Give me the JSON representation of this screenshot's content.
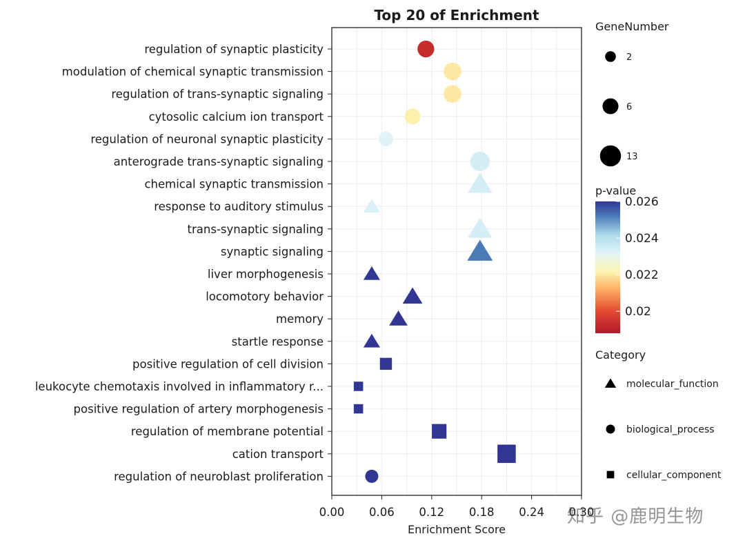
{
  "chart_data": {
    "type": "scatter",
    "title": "Top 20 of  Enrichment",
    "xlabel": "Enrichment Score",
    "ylabel": "",
    "xlim": [
      0,
      0.3
    ],
    "x_ticks": [
      "0.00",
      "0.06",
      "0.12",
      "0.18",
      "0.24",
      "0.30"
    ],
    "grid": true,
    "legend_placement": "right",
    "terms": [
      {
        "name": "regulation of synaptic plasticity",
        "x": 0.113,
        "genes": 6,
        "pvalue": 0.0193,
        "category": "biological_process"
      },
      {
        "name": "modulation of chemical synaptic transmission",
        "x": 0.145,
        "genes": 7,
        "pvalue": 0.022,
        "category": "biological_process"
      },
      {
        "name": "regulation of trans-synaptic signaling",
        "x": 0.145,
        "genes": 7,
        "pvalue": 0.022,
        "category": "biological_process"
      },
      {
        "name": "cytosolic calcium ion transport",
        "x": 0.097,
        "genes": 5,
        "pvalue": 0.0221,
        "category": "biological_process"
      },
      {
        "name": "regulation of neuronal synaptic plasticity",
        "x": 0.065,
        "genes": 4,
        "pvalue": 0.0232,
        "category": "biological_process"
      },
      {
        "name": "anterograde trans-synaptic signaling",
        "x": 0.178,
        "genes": 9,
        "pvalue": 0.0234,
        "category": "biological_process"
      },
      {
        "name": "chemical synaptic transmission",
        "x": 0.178,
        "genes": 9,
        "pvalue": 0.0234,
        "category": "molecular_function"
      },
      {
        "name": "response to auditory stimulus",
        "x": 0.048,
        "genes": 3,
        "pvalue": 0.0233,
        "category": "molecular_function"
      },
      {
        "name": "trans-synaptic signaling",
        "x": 0.178,
        "genes": 9,
        "pvalue": 0.0234,
        "category": "molecular_function"
      },
      {
        "name": "synaptic signaling",
        "x": 0.178,
        "genes": 10,
        "pvalue": 0.0252,
        "category": "molecular_function"
      },
      {
        "name": "liver morphogenesis",
        "x": 0.048,
        "genes": 3,
        "pvalue": 0.0262,
        "category": "molecular_function"
      },
      {
        "name": "locomotory behavior",
        "x": 0.097,
        "genes": 5,
        "pvalue": 0.0262,
        "category": "molecular_function"
      },
      {
        "name": "memory",
        "x": 0.08,
        "genes": 4,
        "pvalue": 0.0262,
        "category": "molecular_function"
      },
      {
        "name": "startle response",
        "x": 0.048,
        "genes": 3,
        "pvalue": 0.0262,
        "category": "molecular_function"
      },
      {
        "name": "positive regulation of cell division",
        "x": 0.065,
        "genes": 4,
        "pvalue": 0.0262,
        "category": "cellular_component"
      },
      {
        "name": "leukocyte chemotaxis involved in inflammatory r...",
        "x": 0.032,
        "genes": 2,
        "pvalue": 0.0262,
        "category": "cellular_component"
      },
      {
        "name": "positive regulation of artery morphogenesis",
        "x": 0.032,
        "genes": 2,
        "pvalue": 0.0262,
        "category": "cellular_component"
      },
      {
        "name": "regulation of membrane potential",
        "x": 0.129,
        "genes": 7,
        "pvalue": 0.0262,
        "category": "cellular_component"
      },
      {
        "name": "cation transport",
        "x": 0.21,
        "genes": 13,
        "pvalue": 0.0262,
        "category": "cellular_component"
      },
      {
        "name": "regulation of neuroblast proliferation",
        "x": 0.048,
        "genes": 3,
        "pvalue": 0.0262,
        "category": "biological_process"
      }
    ],
    "size_legend": {
      "title": "GeneNumber",
      "values": [
        "2",
        "6",
        "13"
      ]
    },
    "color_legend": {
      "title": "p-value",
      "range": [
        0.0188,
        0.026
      ],
      "ticks": [
        0.026,
        0.024,
        0.022,
        0.02
      ],
      "tick_labels": [
        "0.026",
        "0.024",
        "0.022",
        "0.02"
      ],
      "stops": [
        {
          "v": 0.0188,
          "c": "#b2182b"
        },
        {
          "v": 0.02,
          "c": "#e34a33"
        },
        {
          "v": 0.0212,
          "c": "#fdae61"
        },
        {
          "v": 0.0222,
          "c": "#fef6b5"
        },
        {
          "v": 0.0232,
          "c": "#e0f3f8"
        },
        {
          "v": 0.0242,
          "c": "#abd9e9"
        },
        {
          "v": 0.0252,
          "c": "#4a7bb7"
        },
        {
          "v": 0.026,
          "c": "#313695"
        }
      ]
    },
    "category_legend": {
      "title": "Category",
      "items": [
        {
          "label": "molecular_function",
          "shape": "triangle"
        },
        {
          "label": "biological_process",
          "shape": "circle"
        },
        {
          "label": "cellular_component",
          "shape": "square"
        }
      ]
    }
  },
  "watermark": "知乎 @鹿明生物"
}
